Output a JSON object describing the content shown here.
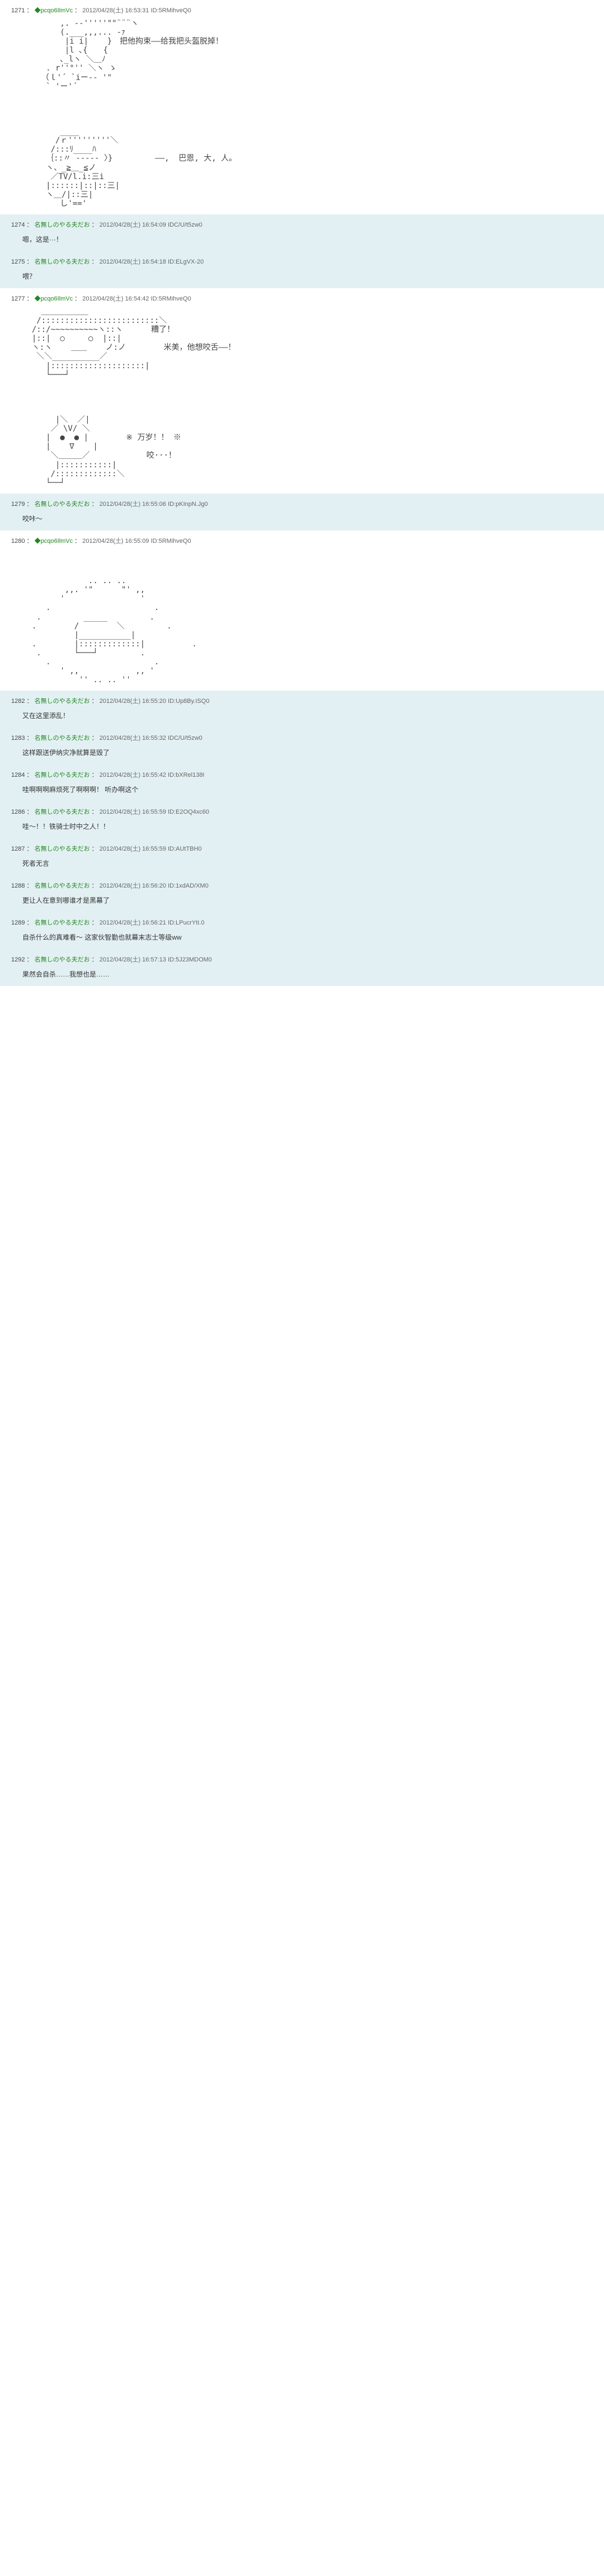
{
  "posts": [
    {
      "num": "1271",
      "trip": "◆pcqo6IlmVc",
      "date": "2012/04/28(土) 16:53:31",
      "id": "ID:5RMihveQ0",
      "highlight": false,
      "aa": "        ,. -‐'''''\"\"¨¨¨ヽ\n        (.___,,,... -ｧ\n         |i i|    }　把他拘束——给我把头盔脱掉！\n         |l ､{　　{\n        ､_lヽ ＼＿ﾉ\n     . r''°'' ＼ヽ ゝ\n    （ｌ'´ `iー-‐ '\"\n     ` 'ー'´\n\n\n\n\n        ____\n       /ｒ'''''''''＼\n      /:::ﾘ____ﾊ\n     ｛::〃 ----- 〉}         ——,  巴恩, 大, 人。\n     ヽ、_≧＿_≦ノ\n      ／TV/l.i:三i\n     |::::::|::|::三|\n     ヽ＿/|::三|\n        し'=='",
      "dialogue": ""
    },
    {
      "num": "1274",
      "name": "名無しのやる夫だお",
      "date": "2012/04/28(土) 16:54:09",
      "id": "IDC/U/t5zw0",
      "highlight": true,
      "comment": "嗯，这是···！"
    },
    {
      "num": "1275",
      "name": "名無しのやる夫だお",
      "date": "2012/04/28(土) 16:54:18",
      "id": "ID:ELgVX-20",
      "highlight": true,
      "comment": "喂？"
    },
    {
      "num": "1277",
      "trip": "◆pcqo6IlmVc",
      "date": "2012/04/28(土) 16:54:42",
      "id": "ID:5RMihveQ0",
      "highlight": false,
      "aa": "    ＿＿＿＿＿＿\n   /:::::::::::::::::::::::::＼\n  /::/~~~~~~~~~~ヽ::ヽ      糟了！\n  |::|  ○     ○  |::|\n  ヽ:ヽ    ＿＿    ノ:ノ        米美，他想咬舌——！\n   ＼＼__________／\n     |::::::::::::::::::::|\n     └───┘\n\n\n\n\n       |＼  ／|\n      ／ \\V/ ＼\n     |  ●  ● |        ※ 万岁！！ ※\n     |    ∇    |\n      ＼＿＿＿／            咬···！\n       |:::::::::::|\n      /:::::::::::::＼\n     └──┘",
      "dialogue": ""
    },
    {
      "num": "1279",
      "name": "名無しのやる夫だお",
      "date": "2012/04/28(土) 16:55:06",
      "id": "ID:pKInpN.Jg0",
      "highlight": true,
      "comment": "咬咔～"
    },
    {
      "num": "1280",
      "trip": "◆pcqo6IlmVc",
      "date": "2012/04/28(土) 16:55:09",
      "id": "ID:5RMihveQ0",
      "highlight": false,
      "aa": "\n\n\n              .. .. ..\n         ,,. '\"      \"' ,,\n        '                '\n     .                      .\n   .         _____         .\n  .        /        ＼         .\n           |___________|\n  .        |:::::::::::::|          .\n   .       └───┘         .\n     .                      .\n        ' ,,            ,, '\n            '' .. .. ''",
      "dialogue": ""
    },
    {
      "num": "1282",
      "name": "名無しのやる夫だお",
      "date": "2012/04/28(土) 16:55:20",
      "id": "ID:Up8By.ISQ0",
      "highlight": true,
      "comment": "又在这里添乱！"
    },
    {
      "num": "1283",
      "name": "名無しのやる夫だお",
      "date": "2012/04/28(土) 16:55:32",
      "id": "IDC/U/t5zw0",
      "highlight": true,
      "comment": "这样跟送伊纳灾净就算是毁了"
    },
    {
      "num": "1284",
      "name": "名無しのやる夫だお",
      "date": "2012/04/28(土) 16:55:42",
      "id": "ID:bXRel138I",
      "highlight": true,
      "comment": "哇啊啊啊麻烦死了啊啊啊！\n\n听办啊这个"
    },
    {
      "num": "1286",
      "name": "名無しのやる夫だお",
      "date": "2012/04/28(土) 16:55:59",
      "id": "ID:E2OQ4xc60",
      "highlight": true,
      "comment": "哇～！！铁骑士时中之人！！"
    },
    {
      "num": "1287",
      "name": "名無しのやる夫だお",
      "date": "2012/04/28(土) 16:55:59",
      "id": "ID:AUtTBH0",
      "highlight": true,
      "comment": "死者无言"
    },
    {
      "num": "1288",
      "name": "名無しのやる夫だお",
      "date": "2012/04/28(土) 16:56:20",
      "id": "ID:1xdAD/XM0",
      "highlight": true,
      "comment": "更让人在意到哪谁才是黑幕了"
    },
    {
      "num": "1289",
      "name": "名無しのやる夫だお",
      "date": "2012/04/28(土) 16:56:21",
      "id": "ID:LPucrYtI.0",
      "highlight": true,
      "comment": "自杀什么的真难看～\n\n这家伙智勤也就幕末志士等级ww"
    },
    {
      "num": "1292",
      "name": "名無しのやる夫だお",
      "date": "2012/04/28(土) 16:57:13",
      "id": "ID:5J23MDOM0",
      "highlight": true,
      "comment": "果然会自杀……我想也是……"
    }
  ]
}
